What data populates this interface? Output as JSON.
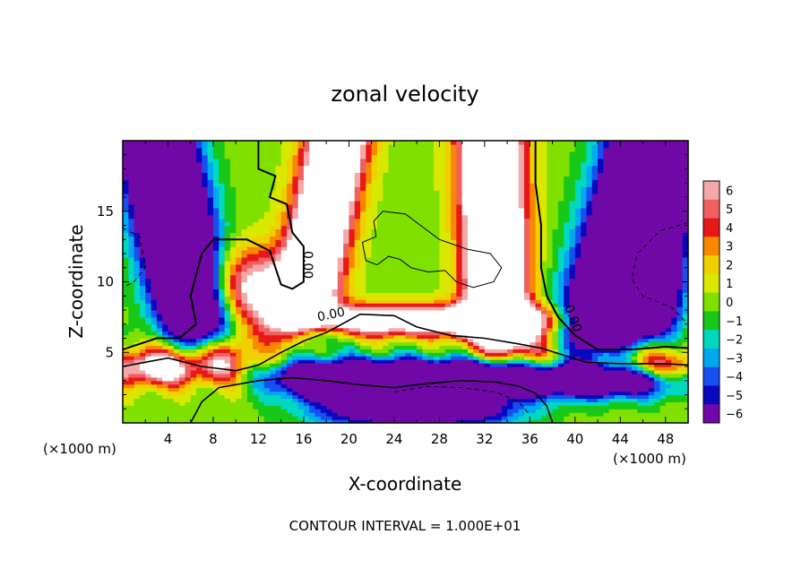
{
  "chart_data": {
    "type": "heatmap",
    "title": "zonal velocity",
    "xlabel": "X-coordinate",
    "ylabel": "Z-coordinate",
    "x_unit_label": "(×1000 m)",
    "y_unit_label": "(×1000 m)",
    "footer": "CONTOUR INTERVAL = 1.000E+01",
    "xlim": [
      0,
      50
    ],
    "ylim": [
      0,
      20
    ],
    "x_ticks": [
      4,
      8,
      12,
      16,
      20,
      24,
      28,
      32,
      36,
      40,
      44,
      48
    ],
    "y_ticks": [
      5,
      10,
      15
    ],
    "contour_labels": [
      {
        "text": "0.00",
        "x": 16,
        "z": 11.2,
        "rotate": 90
      },
      {
        "text": "0.00",
        "x": 18.5,
        "z": 7.4,
        "rotate": -12
      },
      {
        "text": "0.00",
        "x": 39.5,
        "z": 7.3,
        "rotate": 70
      }
    ],
    "colorbar": {
      "levels": [
        6,
        5,
        4,
        3,
        2,
        1,
        0,
        -1,
        -2,
        -3,
        -4,
        -5,
        -6
      ],
      "colors": [
        "#f4a8a8",
        "#f06060",
        "#e81818",
        "#f88800",
        "#f0d000",
        "#d8e800",
        "#80e000",
        "#18c818",
        "#00d8c0",
        "#00a8f0",
        "#1850f0",
        "#0808c0",
        "#7008a8"
      ]
    },
    "color_scale": [
      "#ffffff",
      "#f4a8a8",
      "#f06060",
      "#e81818",
      "#f88800",
      "#f0d000",
      "#d8e800",
      "#80e000",
      "#18c818",
      "#00d8c0",
      "#00a8f0",
      "#1850f0",
      "#0808c0",
      "#7008a8"
    ]
  }
}
